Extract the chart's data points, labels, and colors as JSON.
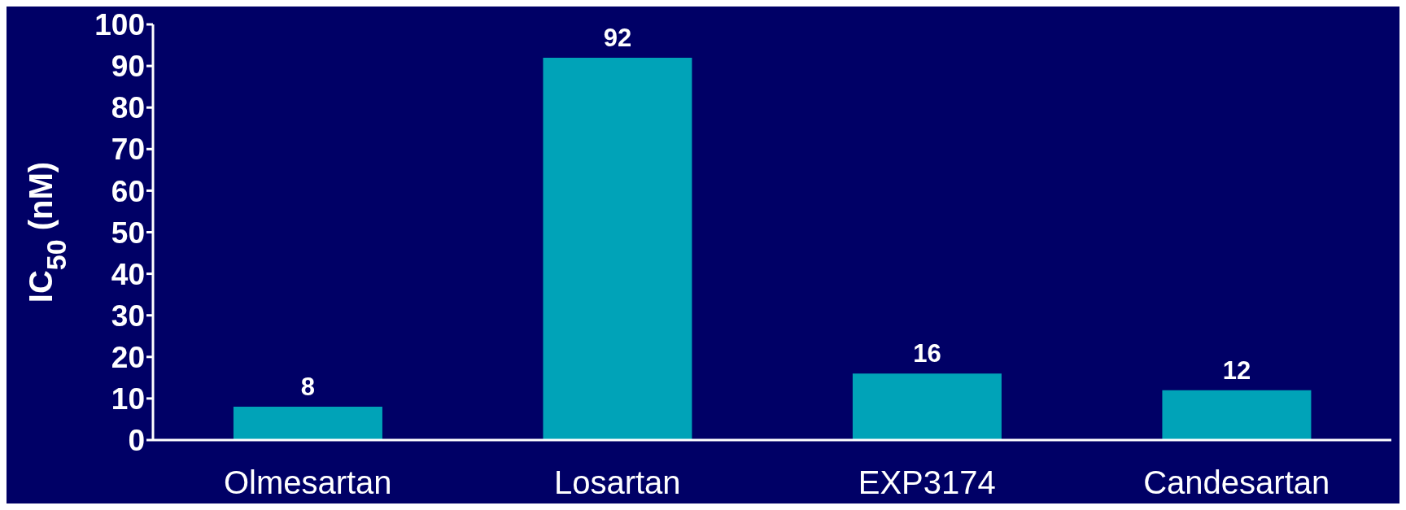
{
  "chart_data": {
    "type": "bar",
    "ylabel": "IC$_{50}$ (nM)",
    "categories": [
      "Olmesartan",
      "Losartan",
      "EXP3174",
      "Candesartan"
    ],
    "values": [
      8,
      92,
      16,
      12
    ],
    "color": "#00a3b8",
    "ylim": [
      0,
      100
    ],
    "yticks": [
      0,
      10,
      20,
      30,
      40,
      50,
      60,
      70,
      80,
      90,
      100
    ],
    "grid": false,
    "data_labels": true
  }
}
